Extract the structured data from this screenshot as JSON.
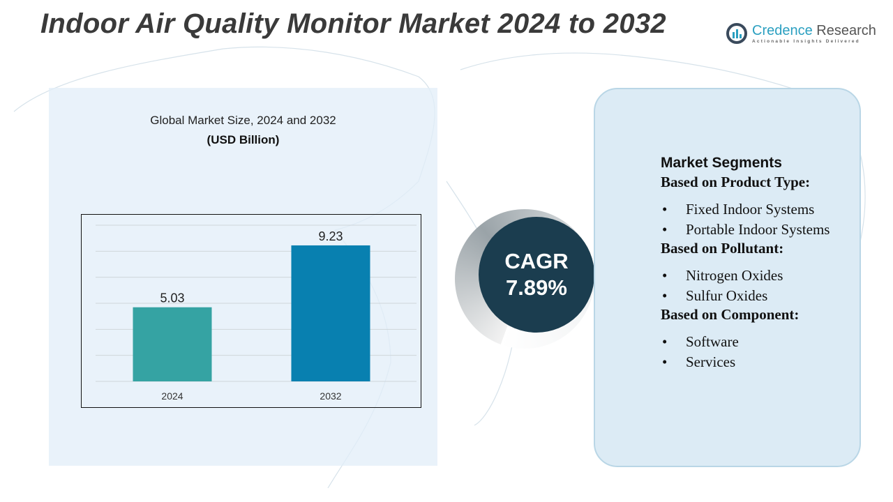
{
  "title": "Indoor Air Quality Monitor Market 2024 to 2032",
  "logo": {
    "name_a": "Credence",
    "name_b": " Research",
    "tagline": "Actionable Insights Delivered"
  },
  "chart_heading": "Global Market Size, 2024 and 2032",
  "chart_unit": "(USD Billion)",
  "chart_data": {
    "type": "bar",
    "categories": [
      "2024",
      "2032"
    ],
    "values": [
      5.03,
      9.23
    ],
    "value_labels": [
      "5.03",
      "9.23"
    ],
    "colors": [
      "#35a3a3",
      "#0880b0"
    ],
    "ylim": [
      0,
      10.6
    ],
    "grid": true,
    "xlabel": "",
    "ylabel": ""
  },
  "cagr": {
    "label": "CAGR",
    "value": "7.89%"
  },
  "segments": {
    "heading": "Market Segments",
    "groups": [
      {
        "title": "Based on Product Type:",
        "items": [
          "Fixed Indoor Systems",
          "Portable Indoor Systems"
        ]
      },
      {
        "title": "Based on Pollutant:",
        "items": [
          "Nitrogen Oxides",
          "Sulfur Oxides"
        ]
      },
      {
        "title": "Based on Component:",
        "items": [
          "Software",
          "Services"
        ]
      }
    ]
  }
}
